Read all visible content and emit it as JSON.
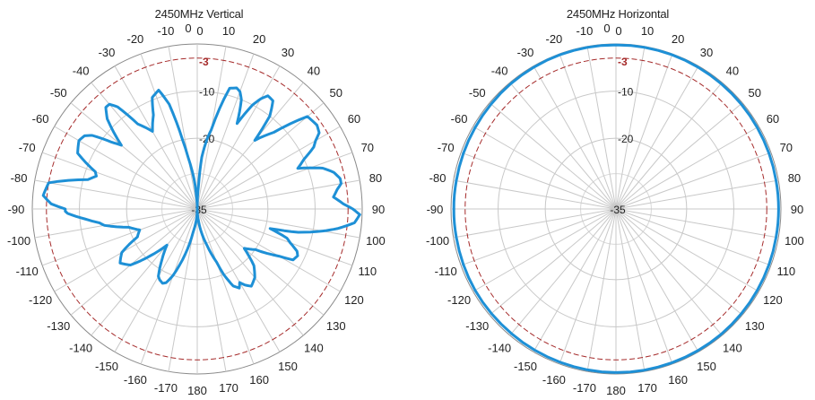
{
  "chart_data": [
    {
      "type": "polar-line",
      "title": "2450MHz Vertical",
      "angle_labels": [
        "0",
        "10",
        "20",
        "30",
        "40",
        "50",
        "60",
        "70",
        "80",
        "90",
        "100",
        "110",
        "120",
        "130",
        "140",
        "150",
        "160",
        "170",
        "180",
        "-170",
        "-160",
        "-150",
        "-140",
        "-130",
        "-120",
        "-110",
        "-100",
        "-90",
        "-80",
        "-70",
        "-60",
        "-50",
        "-40",
        "-30",
        "-20",
        "-10",
        "0"
      ],
      "radial_ticks": [
        "-35",
        "-20",
        "-10",
        "-3"
      ],
      "r_range": [
        -35,
        0
      ],
      "reference_ring": -3,
      "line_color": "#1e90d6",
      "reference_color": "#a52a2a",
      "grid": true,
      "series": [
        {
          "angles": [
            -180,
            -170,
            -165,
            -160,
            -157,
            -155,
            -152,
            -150,
            -145,
            -140,
            -135,
            -130,
            -125,
            -120,
            -115,
            -110,
            -105,
            -100,
            -98,
            -95,
            -92,
            -91,
            -90,
            -88,
            -85,
            -80,
            -75,
            -72,
            -70,
            -65,
            -60,
            -57,
            -55,
            -52,
            -50,
            -45,
            -42,
            -40,
            -38,
            -35,
            -30,
            -25,
            -22,
            -20,
            -18,
            -15,
            -12,
            -10,
            -5,
            -3,
            0,
            3,
            5,
            8,
            10,
            15,
            18,
            20,
            22,
            25,
            28,
            30,
            32,
            35,
            38,
            40,
            45,
            50,
            55,
            58,
            60,
            62,
            65,
            68,
            70,
            72,
            75,
            78,
            80,
            82,
            85,
            88,
            90,
            92,
            95,
            98,
            100,
            103,
            105,
            108,
            110,
            113,
            115,
            118,
            120,
            125,
            130,
            135,
            140,
            145,
            148,
            150,
            152,
            155,
            158,
            160,
            165,
            170,
            175,
            180
          ],
          "values": [
            -35,
            -30,
            -25,
            -20,
            -18,
            -17.6,
            -18,
            -18.5,
            -22,
            -25,
            -21,
            -16.5,
            -15,
            -16.5,
            -21,
            -22,
            -20,
            -15,
            -14,
            -11,
            -7.5,
            -7,
            -7,
            -4,
            -2.2,
            -3,
            -11,
            -12.5,
            -12,
            -7,
            -6,
            -6.5,
            -7.8,
            -12,
            -14,
            -8,
            -6,
            -6,
            -7.5,
            -13,
            -16,
            -13,
            -9.5,
            -9,
            -8.5,
            -12,
            -20,
            -24,
            -30,
            -33,
            -35,
            -30,
            -24,
            -20,
            -18,
            -8.5,
            -8,
            -8.5,
            -10,
            -15,
            -10,
            -8,
            -6.7,
            -7,
            -10,
            -16,
            -12,
            -4.5,
            -4,
            -4.5,
            -6,
            -7,
            -10,
            -12,
            -9.5,
            -7,
            -5,
            -4,
            -4,
            -5,
            -6,
            -4,
            -2,
            -0.5,
            -1.5,
            -5,
            -8,
            -13,
            -19,
            -15,
            -14,
            -12,
            -11.5,
            -12,
            -15,
            -20,
            -22,
            -18,
            -16,
            -15,
            -16,
            -17,
            -16,
            -17,
            -20,
            -23,
            -27,
            -30,
            -33,
            -35
          ]
        }
      ]
    },
    {
      "type": "polar-line",
      "title": "2450MHz Horizontal",
      "angle_labels": [
        "0",
        "10",
        "20",
        "30",
        "40",
        "50",
        "60",
        "70",
        "80",
        "90",
        "100",
        "110",
        "120",
        "130",
        "140",
        "150",
        "160",
        "170",
        "180",
        "-170",
        "-160",
        "-150",
        "-140",
        "-130",
        "-120",
        "-110",
        "-100",
        "-90",
        "-80",
        "-70",
        "-60",
        "-50",
        "-40",
        "-30",
        "-20",
        "-10",
        "0"
      ],
      "radial_ticks": [
        "-35",
        "-20",
        "-10",
        "-3"
      ],
      "r_range": [
        -35,
        0
      ],
      "reference_ring": -3,
      "line_color": "#1e90d6",
      "reference_color": "#a52a2a",
      "grid": true,
      "series": [
        {
          "angles": [
            -180,
            -160,
            -140,
            -120,
            -100,
            -90,
            -80,
            -60,
            -40,
            -20,
            0,
            20,
            40,
            60,
            80,
            90,
            100,
            120,
            140,
            160,
            180
          ],
          "values": [
            -0.3,
            -0.4,
            -0.5,
            -0.5,
            -0.6,
            -0.6,
            -0.6,
            -0.5,
            -0.3,
            -0.2,
            -0.2,
            -0.2,
            -0.3,
            -0.4,
            -0.5,
            -0.5,
            -0.5,
            -0.4,
            -0.3,
            -0.3,
            -0.3
          ]
        }
      ]
    }
  ]
}
